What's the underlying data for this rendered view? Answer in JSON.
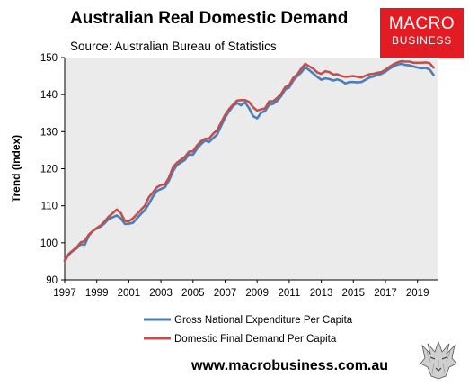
{
  "header": {
    "title": "Australian Real Domestic Demand",
    "source": "Source: Australian Bureau of Statistics"
  },
  "logo": {
    "line1": "MACRO",
    "line2": "BUSINESS",
    "color": "#e31b23"
  },
  "footer": {
    "website": "www.macrobusiness.com.au"
  },
  "chart_data": {
    "type": "line",
    "title": "Australian Real Domestic Demand",
    "subtitle": "Source: Australian Bureau of Statistics",
    "xlabel": "",
    "ylabel": "Trend (Index)",
    "xlim": [
      1997,
      2020.25
    ],
    "ylim": [
      90,
      150
    ],
    "yticks": [
      90,
      100,
      110,
      120,
      130,
      140,
      150
    ],
    "xticks": [
      1997,
      1999,
      2001,
      2003,
      2005,
      2007,
      2009,
      2011,
      2013,
      2015,
      2017,
      2019
    ],
    "grid": false,
    "legend_position": "bottom",
    "background": "#ebebeb",
    "series": [
      {
        "name": "Gross National Expenditure Per Capita",
        "color": "#4a7ebb",
        "points": [
          [
            1997.0,
            95.3
          ],
          [
            1997.25,
            96.8
          ],
          [
            1997.5,
            97.8
          ],
          [
            1997.75,
            98.5
          ],
          [
            1998.0,
            99.6
          ],
          [
            1998.25,
            99.5
          ],
          [
            1998.5,
            101.9
          ],
          [
            1998.75,
            103.2
          ],
          [
            1999.0,
            103.9
          ],
          [
            1999.25,
            104.4
          ],
          [
            1999.5,
            105.3
          ],
          [
            1999.75,
            106.5
          ],
          [
            2000.0,
            106.9
          ],
          [
            2000.25,
            107.4
          ],
          [
            2000.5,
            106.6
          ],
          [
            2000.75,
            105.1
          ],
          [
            2001.0,
            105.1
          ],
          [
            2001.25,
            105.4
          ],
          [
            2001.5,
            106.6
          ],
          [
            2001.75,
            107.8
          ],
          [
            2002.0,
            108.8
          ],
          [
            2002.25,
            110.5
          ],
          [
            2002.5,
            112.5
          ],
          [
            2002.75,
            114.0
          ],
          [
            2003.0,
            114.5
          ],
          [
            2003.25,
            115.0
          ],
          [
            2003.5,
            116.8
          ],
          [
            2003.75,
            119.3
          ],
          [
            2004.0,
            121.0
          ],
          [
            2004.25,
            121.7
          ],
          [
            2004.5,
            122.4
          ],
          [
            2004.75,
            123.9
          ],
          [
            2005.0,
            123.8
          ],
          [
            2005.25,
            125.4
          ],
          [
            2005.5,
            126.6
          ],
          [
            2005.75,
            127.6
          ],
          [
            2006.0,
            127.2
          ],
          [
            2006.25,
            128.2
          ],
          [
            2006.5,
            129.2
          ],
          [
            2006.75,
            131.5
          ],
          [
            2007.0,
            133.8
          ],
          [
            2007.25,
            135.5
          ],
          [
            2007.5,
            136.9
          ],
          [
            2007.75,
            137.7
          ],
          [
            2008.0,
            137.1
          ],
          [
            2008.25,
            137.9
          ],
          [
            2008.5,
            136.3
          ],
          [
            2008.75,
            134.2
          ],
          [
            2009.0,
            133.6
          ],
          [
            2009.25,
            135.1
          ],
          [
            2009.5,
            135.6
          ],
          [
            2009.75,
            137.3
          ],
          [
            2010.0,
            137.5
          ],
          [
            2010.25,
            138.3
          ],
          [
            2010.5,
            139.6
          ],
          [
            2010.75,
            141.4
          ],
          [
            2011.0,
            141.9
          ],
          [
            2011.25,
            143.8
          ],
          [
            2011.5,
            145.0
          ],
          [
            2011.75,
            146.0
          ],
          [
            2012.0,
            147.4
          ],
          [
            2012.25,
            146.6
          ],
          [
            2012.5,
            145.7
          ],
          [
            2012.75,
            144.8
          ],
          [
            2013.0,
            144.0
          ],
          [
            2013.25,
            144.4
          ],
          [
            2013.5,
            144.2
          ],
          [
            2013.75,
            143.8
          ],
          [
            2014.0,
            144.1
          ],
          [
            2014.25,
            143.7
          ],
          [
            2014.5,
            143.0
          ],
          [
            2014.75,
            143.4
          ],
          [
            2015.0,
            143.4
          ],
          [
            2015.25,
            143.3
          ],
          [
            2015.5,
            143.4
          ],
          [
            2015.75,
            144.0
          ],
          [
            2016.0,
            144.6
          ],
          [
            2016.25,
            144.9
          ],
          [
            2016.5,
            145.3
          ],
          [
            2016.75,
            145.6
          ],
          [
            2017.0,
            146.2
          ],
          [
            2017.25,
            147.0
          ],
          [
            2017.5,
            147.6
          ],
          [
            2017.75,
            148.1
          ],
          [
            2018.0,
            148.3
          ],
          [
            2018.25,
            148.0
          ],
          [
            2018.5,
            147.9
          ],
          [
            2018.75,
            147.6
          ],
          [
            2019.0,
            147.3
          ],
          [
            2019.25,
            147.1
          ],
          [
            2019.5,
            147.2
          ],
          [
            2019.75,
            146.8
          ],
          [
            2020.0,
            145.3
          ]
        ]
      },
      {
        "name": "Domestic Final Demand Per Capita",
        "color": "#c0504d",
        "points": [
          [
            1997.0,
            95.0
          ],
          [
            1997.25,
            97.0
          ],
          [
            1997.5,
            97.9
          ],
          [
            1997.75,
            98.8
          ],
          [
            1998.0,
            100.1
          ],
          [
            1998.25,
            100.5
          ],
          [
            1998.5,
            102.2
          ],
          [
            1998.75,
            103.2
          ],
          [
            1999.0,
            104.0
          ],
          [
            1999.25,
            104.7
          ],
          [
            1999.5,
            105.8
          ],
          [
            1999.75,
            107.1
          ],
          [
            2000.0,
            108.0
          ],
          [
            2000.25,
            109.0
          ],
          [
            2000.5,
            108.0
          ],
          [
            2000.75,
            105.9
          ],
          [
            2001.0,
            105.8
          ],
          [
            2001.25,
            106.6
          ],
          [
            2001.5,
            107.7
          ],
          [
            2001.75,
            108.9
          ],
          [
            2002.0,
            110.0
          ],
          [
            2002.25,
            112.3
          ],
          [
            2002.5,
            113.6
          ],
          [
            2002.75,
            115.0
          ],
          [
            2003.0,
            115.6
          ],
          [
            2003.25,
            115.8
          ],
          [
            2003.5,
            117.6
          ],
          [
            2003.75,
            120.4
          ],
          [
            2004.0,
            121.6
          ],
          [
            2004.25,
            122.4
          ],
          [
            2004.5,
            123.2
          ],
          [
            2004.75,
            124.6
          ],
          [
            2005.0,
            124.7
          ],
          [
            2005.25,
            126.3
          ],
          [
            2005.5,
            127.4
          ],
          [
            2005.75,
            128.1
          ],
          [
            2006.0,
            128.1
          ],
          [
            2006.25,
            129.4
          ],
          [
            2006.5,
            130.4
          ],
          [
            2006.75,
            132.4
          ],
          [
            2007.0,
            134.5
          ],
          [
            2007.25,
            136.1
          ],
          [
            2007.5,
            137.3
          ],
          [
            2007.75,
            138.4
          ],
          [
            2008.0,
            138.5
          ],
          [
            2008.25,
            138.5
          ],
          [
            2008.5,
            138.0
          ],
          [
            2008.75,
            136.6
          ],
          [
            2009.0,
            135.7
          ],
          [
            2009.25,
            136.0
          ],
          [
            2009.5,
            136.3
          ],
          [
            2009.75,
            138.2
          ],
          [
            2010.0,
            138.2
          ],
          [
            2010.25,
            139.1
          ],
          [
            2010.5,
            140.2
          ],
          [
            2010.75,
            142.0
          ],
          [
            2011.0,
            142.6
          ],
          [
            2011.25,
            144.5
          ],
          [
            2011.5,
            145.4
          ],
          [
            2011.75,
            147.0
          ],
          [
            2012.0,
            148.3
          ],
          [
            2012.25,
            147.6
          ],
          [
            2012.5,
            147.0
          ],
          [
            2012.75,
            146.0
          ],
          [
            2013.0,
            145.6
          ],
          [
            2013.25,
            146.3
          ],
          [
            2013.5,
            146.1
          ],
          [
            2013.75,
            145.4
          ],
          [
            2014.0,
            145.5
          ],
          [
            2014.25,
            145.0
          ],
          [
            2014.5,
            144.8
          ],
          [
            2014.75,
            144.9
          ],
          [
            2015.0,
            145.0
          ],
          [
            2015.25,
            144.8
          ],
          [
            2015.5,
            144.6
          ],
          [
            2015.75,
            145.1
          ],
          [
            2016.0,
            145.5
          ],
          [
            2016.25,
            145.6
          ],
          [
            2016.5,
            145.9
          ],
          [
            2016.75,
            146.1
          ],
          [
            2017.0,
            146.7
          ],
          [
            2017.25,
            147.5
          ],
          [
            2017.5,
            148.2
          ],
          [
            2017.75,
            148.7
          ],
          [
            2018.0,
            149.0
          ],
          [
            2018.25,
            148.9
          ],
          [
            2018.5,
            148.9
          ],
          [
            2018.75,
            148.6
          ],
          [
            2019.0,
            148.6
          ],
          [
            2019.25,
            148.6
          ],
          [
            2019.5,
            148.7
          ],
          [
            2019.75,
            148.5
          ],
          [
            2020.0,
            147.3
          ]
        ]
      }
    ]
  }
}
